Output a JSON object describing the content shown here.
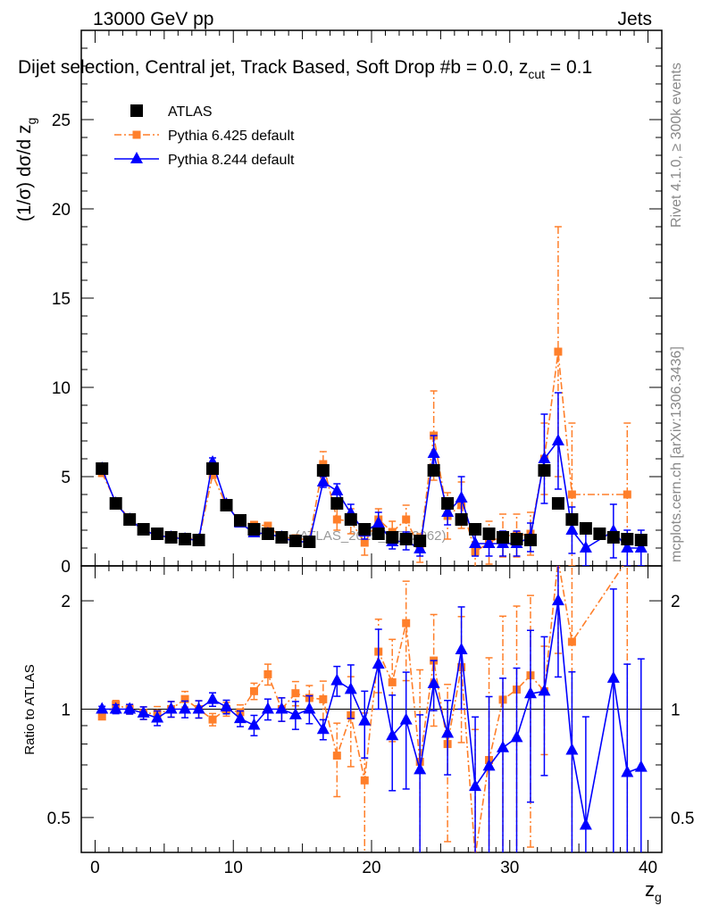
{
  "chart_data": {
    "type": "scatter",
    "header_left": "13000 GeV pp",
    "header_right": "Jets",
    "title": "Dijet selection, Central jet, Track Based, Soft Drop #b = 0.0, z",
    "title_sub": "cut",
    "title_end": " = 0.1",
    "ylabel": "(1/σ) dσ/d z",
    "ylabel_sub": "g",
    "xlabel": "z",
    "xlabel_sub": "g",
    "ratio_ylabel": "Ratio to ATLAS",
    "watermark": "(ATLAS_2019_I1772062)",
    "side_text_top": "Rivet 4.1.0, ≥ 300k events",
    "side_text_bottom": "mcplots.cern.ch [arXiv:1306.3436]",
    "xlim": [
      -1,
      41
    ],
    "ylim": [
      0,
      30
    ],
    "ratio_ylim": [
      0.4,
      2.5
    ],
    "ratio_scale": "log",
    "x_ticks": [
      "0",
      "10",
      "20",
      "30",
      "40"
    ],
    "y_ticks": [
      "0",
      "5",
      "10",
      "15",
      "20",
      "25"
    ],
    "ratio_ticks": [
      "0.5",
      "1",
      "2"
    ],
    "legend_position": "top-left",
    "x": [
      0.5,
      1.5,
      2.5,
      3.5,
      4.5,
      5.5,
      6.5,
      7.5,
      8.5,
      9.5,
      10.5,
      11.5,
      12.5,
      13.5,
      14.5,
      15.5,
      16.5,
      17.5,
      18.5,
      19.5,
      20.5,
      21.5,
      22.5,
      23.5,
      24.5,
      25.5,
      26.5,
      27.5,
      28.5,
      29.5,
      30.5,
      31.5,
      32.5,
      33.5,
      34.5,
      35.5,
      36.5,
      37.5,
      38.5,
      39.5
    ],
    "series": [
      {
        "name": "ATLAS",
        "color": "#000000",
        "marker": "square",
        "values": [
          5.45,
          3.5,
          2.6,
          2.05,
          1.8,
          1.6,
          1.5,
          1.45,
          5.45,
          3.4,
          2.55,
          2.05,
          1.8,
          1.6,
          1.4,
          1.35,
          5.35,
          3.5,
          2.6,
          2.05,
          1.8,
          1.6,
          1.5,
          1.4,
          5.35,
          3.5,
          2.6,
          2.05,
          1.8,
          1.6,
          1.5,
          1.45,
          5.35,
          3.5,
          2.6,
          2.1,
          1.8,
          1.6,
          1.5,
          1.45
        ]
      },
      {
        "name": "Pythia 6.425 default",
        "color": "#ff7f2a",
        "marker": "square-small",
        "line": "dashdot",
        "values": [
          5.2,
          3.6,
          2.6,
          2.0,
          1.75,
          1.6,
          1.6,
          1.45,
          5.1,
          3.4,
          2.5,
          2.3,
          2.25,
          1.6,
          1.55,
          1.45,
          5.7,
          2.6,
          2.5,
          1.3,
          2.6,
          1.9,
          2.6,
          1.0,
          7.3,
          2.8,
          3.4,
          0.8,
          1.3,
          1.7,
          1.7,
          1.8,
          6.0,
          12.0,
          4.0,
          null,
          null,
          null,
          4.0,
          null
        ],
        "errors": [
          0.1,
          0.1,
          0.08,
          0.08,
          0.08,
          0.08,
          0.08,
          0.08,
          0.2,
          0.15,
          0.12,
          0.12,
          0.15,
          0.12,
          0.12,
          0.12,
          0.7,
          0.6,
          0.7,
          0.7,
          0.6,
          0.6,
          0.8,
          0.8,
          2.5,
          1.3,
          1.3,
          1.0,
          1.2,
          1.2,
          1.2,
          1.2,
          2.0,
          7.0,
          4.0,
          null,
          null,
          null,
          4.0,
          null
        ]
      },
      {
        "name": "Pythia 8.244 default",
        "color": "#0000ff",
        "marker": "triangle",
        "line": "solid",
        "values": [
          5.45,
          3.5,
          2.6,
          2.0,
          1.7,
          1.6,
          1.5,
          1.45,
          5.8,
          3.45,
          2.4,
          1.85,
          1.8,
          1.6,
          1.35,
          1.35,
          4.7,
          4.2,
          2.95,
          1.9,
          2.4,
          1.35,
          1.4,
          0.95,
          6.3,
          3.0,
          3.8,
          1.25,
          1.25,
          1.25,
          1.25,
          1.6,
          6.0,
          7.0,
          2.0,
          1.0,
          null,
          1.95,
          1.0,
          1.0
        ],
        "errors": [
          0.1,
          0.1,
          0.08,
          0.08,
          0.08,
          0.08,
          0.08,
          0.08,
          0.25,
          0.15,
          0.12,
          0.12,
          0.12,
          0.12,
          0.12,
          0.12,
          0.3,
          0.4,
          0.5,
          0.4,
          0.6,
          0.4,
          0.5,
          0.4,
          1.0,
          0.7,
          1.2,
          0.7,
          0.7,
          0.7,
          0.7,
          0.8,
          2.5,
          2.7,
          1.3,
          1.0,
          null,
          1.5,
          1.0,
          1.0
        ]
      }
    ]
  }
}
